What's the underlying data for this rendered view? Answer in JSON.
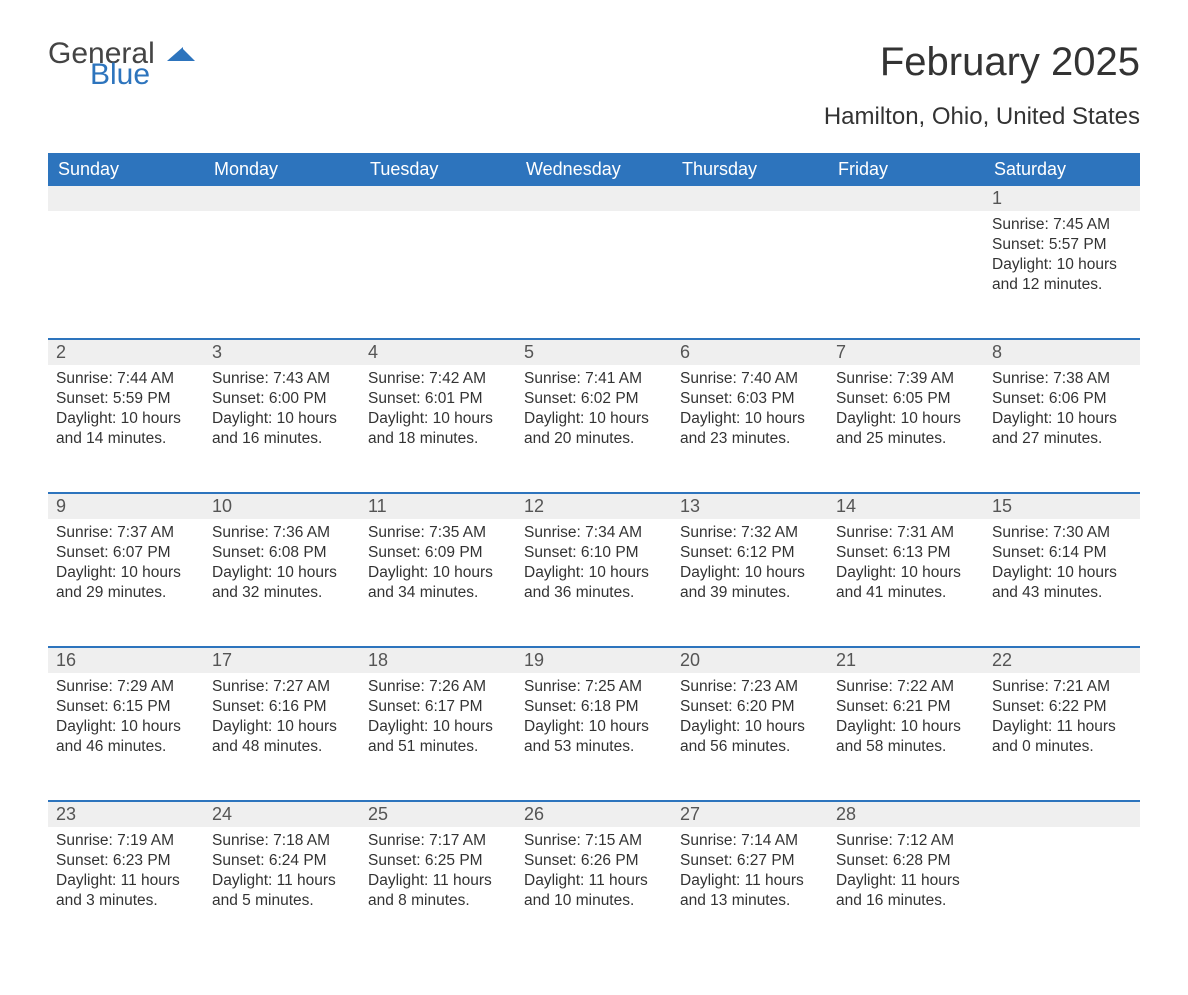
{
  "logo": {
    "general": "General",
    "blue": "Blue"
  },
  "header": {
    "month_title": "February 2025",
    "location": "Hamilton, Ohio, United States"
  },
  "colors": {
    "header_bg": "#2d74bd",
    "header_text": "#ffffff",
    "daynum_bg": "#efefef",
    "border_top": "#2d74bd",
    "text": "#333333",
    "background": "#ffffff"
  },
  "day_headers": [
    "Sunday",
    "Monday",
    "Tuesday",
    "Wednesday",
    "Thursday",
    "Friday",
    "Saturday"
  ],
  "weeks": [
    [
      null,
      null,
      null,
      null,
      null,
      null,
      {
        "n": "1",
        "sunrise": "Sunrise: 7:45 AM",
        "sunset": "Sunset: 5:57 PM",
        "daylight": "Daylight: 10 hours and 12 minutes."
      }
    ],
    [
      {
        "n": "2",
        "sunrise": "Sunrise: 7:44 AM",
        "sunset": "Sunset: 5:59 PM",
        "daylight": "Daylight: 10 hours and 14 minutes."
      },
      {
        "n": "3",
        "sunrise": "Sunrise: 7:43 AM",
        "sunset": "Sunset: 6:00 PM",
        "daylight": "Daylight: 10 hours and 16 minutes."
      },
      {
        "n": "4",
        "sunrise": "Sunrise: 7:42 AM",
        "sunset": "Sunset: 6:01 PM",
        "daylight": "Daylight: 10 hours and 18 minutes."
      },
      {
        "n": "5",
        "sunrise": "Sunrise: 7:41 AM",
        "sunset": "Sunset: 6:02 PM",
        "daylight": "Daylight: 10 hours and 20 minutes."
      },
      {
        "n": "6",
        "sunrise": "Sunrise: 7:40 AM",
        "sunset": "Sunset: 6:03 PM",
        "daylight": "Daylight: 10 hours and 23 minutes."
      },
      {
        "n": "7",
        "sunrise": "Sunrise: 7:39 AM",
        "sunset": "Sunset: 6:05 PM",
        "daylight": "Daylight: 10 hours and 25 minutes."
      },
      {
        "n": "8",
        "sunrise": "Sunrise: 7:38 AM",
        "sunset": "Sunset: 6:06 PM",
        "daylight": "Daylight: 10 hours and 27 minutes."
      }
    ],
    [
      {
        "n": "9",
        "sunrise": "Sunrise: 7:37 AM",
        "sunset": "Sunset: 6:07 PM",
        "daylight": "Daylight: 10 hours and 29 minutes."
      },
      {
        "n": "10",
        "sunrise": "Sunrise: 7:36 AM",
        "sunset": "Sunset: 6:08 PM",
        "daylight": "Daylight: 10 hours and 32 minutes."
      },
      {
        "n": "11",
        "sunrise": "Sunrise: 7:35 AM",
        "sunset": "Sunset: 6:09 PM",
        "daylight": "Daylight: 10 hours and 34 minutes."
      },
      {
        "n": "12",
        "sunrise": "Sunrise: 7:34 AM",
        "sunset": "Sunset: 6:10 PM",
        "daylight": "Daylight: 10 hours and 36 minutes."
      },
      {
        "n": "13",
        "sunrise": "Sunrise: 7:32 AM",
        "sunset": "Sunset: 6:12 PM",
        "daylight": "Daylight: 10 hours and 39 minutes."
      },
      {
        "n": "14",
        "sunrise": "Sunrise: 7:31 AM",
        "sunset": "Sunset: 6:13 PM",
        "daylight": "Daylight: 10 hours and 41 minutes."
      },
      {
        "n": "15",
        "sunrise": "Sunrise: 7:30 AM",
        "sunset": "Sunset: 6:14 PM",
        "daylight": "Daylight: 10 hours and 43 minutes."
      }
    ],
    [
      {
        "n": "16",
        "sunrise": "Sunrise: 7:29 AM",
        "sunset": "Sunset: 6:15 PM",
        "daylight": "Daylight: 10 hours and 46 minutes."
      },
      {
        "n": "17",
        "sunrise": "Sunrise: 7:27 AM",
        "sunset": "Sunset: 6:16 PM",
        "daylight": "Daylight: 10 hours and 48 minutes."
      },
      {
        "n": "18",
        "sunrise": "Sunrise: 7:26 AM",
        "sunset": "Sunset: 6:17 PM",
        "daylight": "Daylight: 10 hours and 51 minutes."
      },
      {
        "n": "19",
        "sunrise": "Sunrise: 7:25 AM",
        "sunset": "Sunset: 6:18 PM",
        "daylight": "Daylight: 10 hours and 53 minutes."
      },
      {
        "n": "20",
        "sunrise": "Sunrise: 7:23 AM",
        "sunset": "Sunset: 6:20 PM",
        "daylight": "Daylight: 10 hours and 56 minutes."
      },
      {
        "n": "21",
        "sunrise": "Sunrise: 7:22 AM",
        "sunset": "Sunset: 6:21 PM",
        "daylight": "Daylight: 10 hours and 58 minutes."
      },
      {
        "n": "22",
        "sunrise": "Sunrise: 7:21 AM",
        "sunset": "Sunset: 6:22 PM",
        "daylight": "Daylight: 11 hours and 0 minutes."
      }
    ],
    [
      {
        "n": "23",
        "sunrise": "Sunrise: 7:19 AM",
        "sunset": "Sunset: 6:23 PM",
        "daylight": "Daylight: 11 hours and 3 minutes."
      },
      {
        "n": "24",
        "sunrise": "Sunrise: 7:18 AM",
        "sunset": "Sunset: 6:24 PM",
        "daylight": "Daylight: 11 hours and 5 minutes."
      },
      {
        "n": "25",
        "sunrise": "Sunrise: 7:17 AM",
        "sunset": "Sunset: 6:25 PM",
        "daylight": "Daylight: 11 hours and 8 minutes."
      },
      {
        "n": "26",
        "sunrise": "Sunrise: 7:15 AM",
        "sunset": "Sunset: 6:26 PM",
        "daylight": "Daylight: 11 hours and 10 minutes."
      },
      {
        "n": "27",
        "sunrise": "Sunrise: 7:14 AM",
        "sunset": "Sunset: 6:27 PM",
        "daylight": "Daylight: 11 hours and 13 minutes."
      },
      {
        "n": "28",
        "sunrise": "Sunrise: 7:12 AM",
        "sunset": "Sunset: 6:28 PM",
        "daylight": "Daylight: 11 hours and 16 minutes."
      },
      null
    ]
  ]
}
